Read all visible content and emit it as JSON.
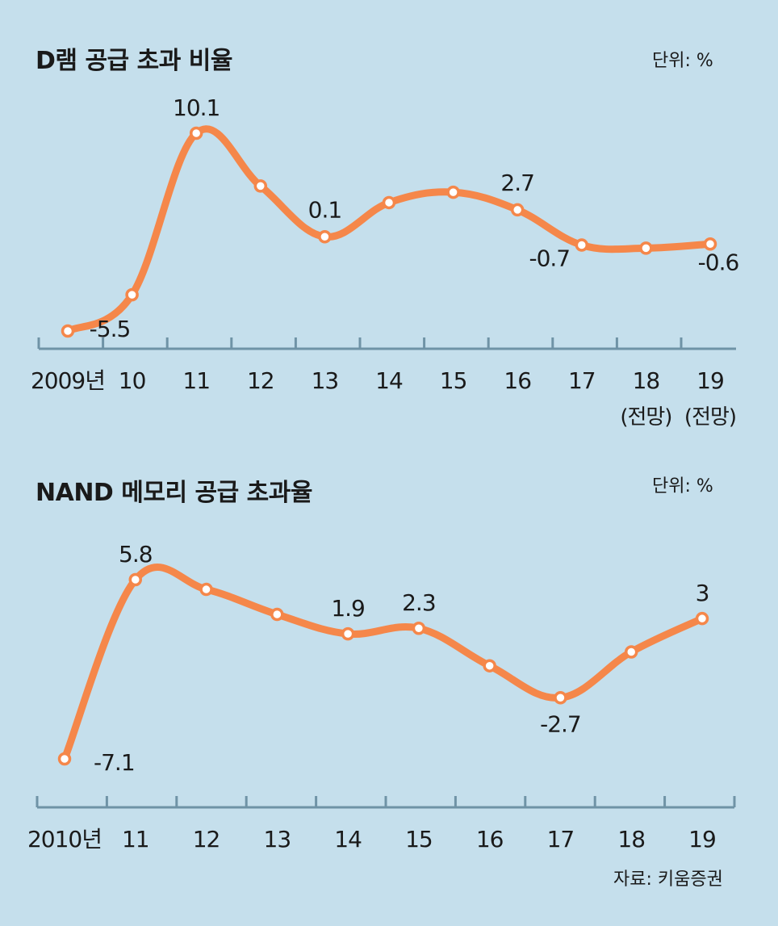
{
  "source": "자료: 키움증권",
  "chart_data": [
    {
      "type": "line",
      "title": "D램 공급 초과 비율",
      "unit_label": "단위: %",
      "x": [
        "2009년",
        "10",
        "11",
        "12",
        "13",
        "14",
        "15",
        "16",
        "17",
        "18",
        "19"
      ],
      "x_sublabels": [
        "",
        "",
        "",
        "",
        "",
        "",
        "",
        "",
        "",
        "(전망)",
        "(전망)"
      ],
      "values": [
        -9.0,
        -5.5,
        10.1,
        5.0,
        0.1,
        3.4,
        4.4,
        2.7,
        -0.7,
        -1.0,
        -0.6
      ],
      "data_labels": [
        "",
        "-5.5",
        "10.1",
        "",
        "0.1",
        "",
        "",
        "2.7",
        "-0.7",
        "",
        "-0.6"
      ],
      "ylim": [
        -11,
        11
      ],
      "color": "#f5874a"
    },
    {
      "type": "line",
      "title": "NAND 메모리 공급 초과율",
      "unit_label": "단위: %",
      "x": [
        "2010년",
        "11",
        "12",
        "13",
        "14",
        "15",
        "16",
        "17",
        "18",
        "19"
      ],
      "x_sublabels": [
        "",
        "",
        "",
        "",
        "",
        "",
        "",
        "",
        "",
        ""
      ],
      "values": [
        -7.1,
        5.8,
        5.1,
        3.3,
        1.9,
        2.3,
        -0.4,
        -2.7,
        0.6,
        3.0
      ],
      "data_labels": [
        "-7.1",
        "5.8",
        "",
        "",
        "1.9",
        "2.3",
        "",
        "-2.7",
        "",
        "3"
      ],
      "ylim": [
        -9,
        8
      ],
      "color": "#f5874a"
    }
  ]
}
